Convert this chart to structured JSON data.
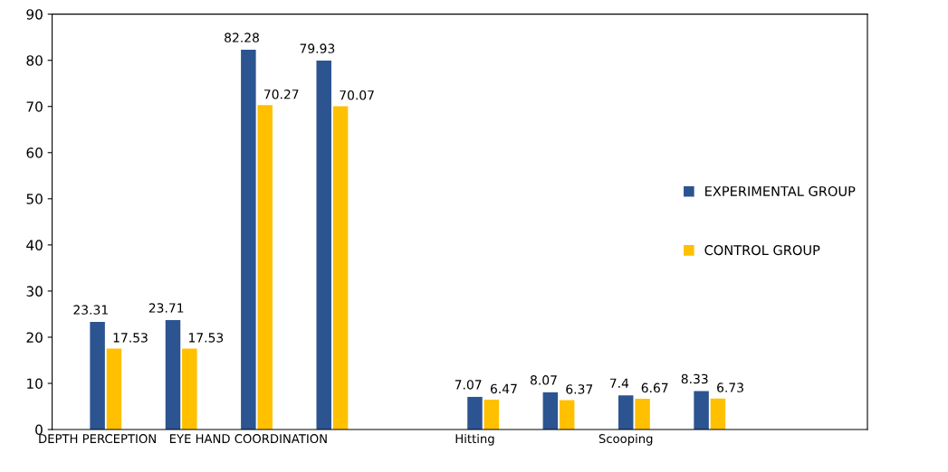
{
  "chart_data": {
    "type": "bar",
    "categories": [
      "DEPTH PERCEPTION",
      null,
      "EYE HAND COORDINATION",
      null,
      null,
      "Hitting",
      null,
      "Scooping",
      null
    ],
    "series": [
      {
        "color": "#77933c",
        "values": [
          0,
          0,
          0,
          0,
          null,
          0,
          0,
          0,
          0
        ]
      },
      {
        "name": "EXPERIMENTAL GROUP",
        "color": "#2c5491",
        "values": [
          23.31,
          23.71,
          82.28,
          79.93,
          null,
          7.07,
          8.07,
          7.4,
          8.33
        ],
        "value_labels": [
          "23.31",
          "23.71",
          "82.28",
          "79.93",
          null,
          "7.07",
          "8.07",
          "7.4",
          "8.33"
        ]
      },
      {
        "name": "CONTROL GROUP",
        "color": "#ffc000",
        "values": [
          17.53,
          17.53,
          70.27,
          70.07,
          null,
          6.47,
          6.37,
          6.67,
          6.73
        ],
        "value_labels": [
          "17.53",
          "17.53",
          "70.27",
          "70.07",
          null,
          "6.47",
          "6.37",
          "6.67",
          "6.73"
        ]
      }
    ],
    "ylim": [
      0,
      90
    ],
    "yticks": [
      0,
      10,
      20,
      30,
      40,
      50,
      60,
      70,
      80,
      90
    ],
    "grid": false,
    "legend": "right"
  }
}
